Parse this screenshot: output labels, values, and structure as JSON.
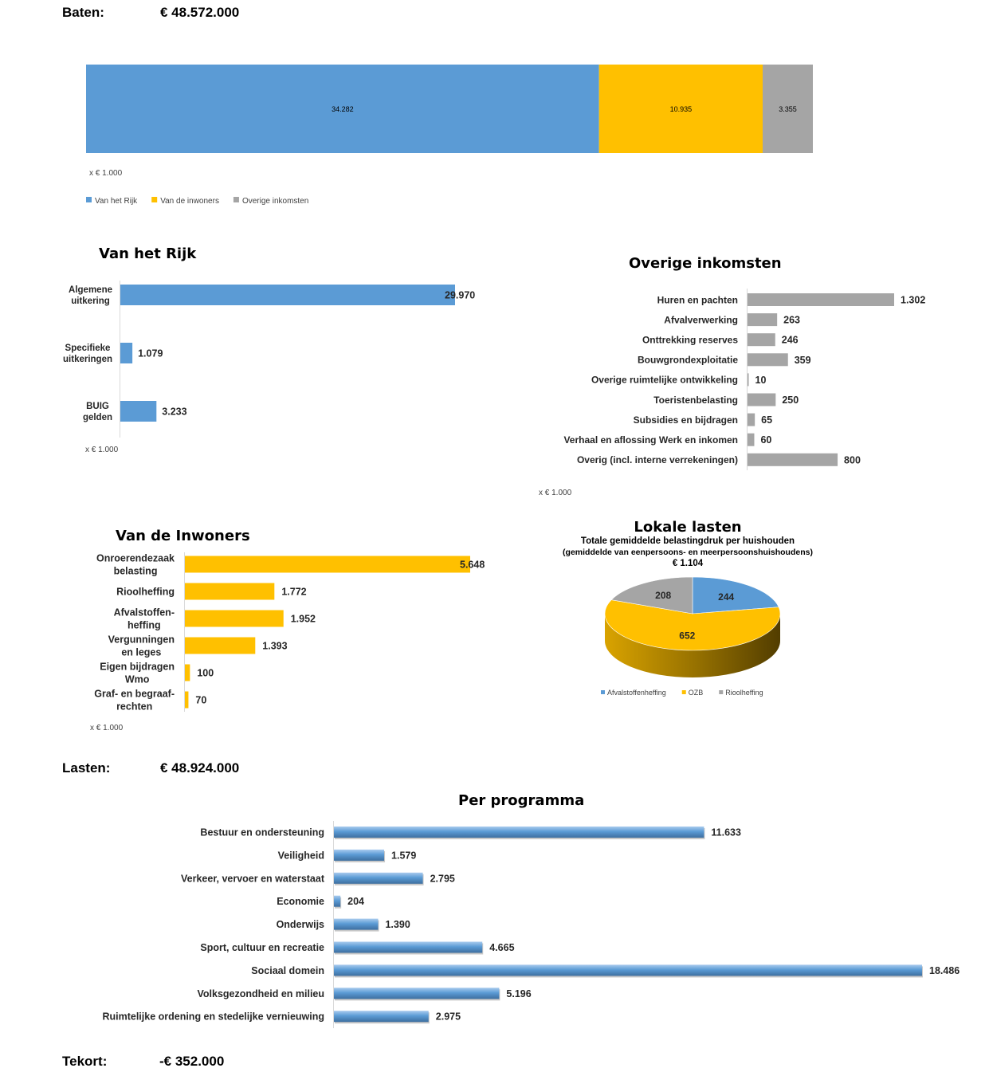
{
  "summary": {
    "baten": {
      "label": "Baten:",
      "value": "€ 48.572.000"
    },
    "lasten": {
      "label": "Lasten:",
      "value": "€ 48.924.000"
    },
    "tekort": {
      "label": "Tekort:",
      "value": "-€ 352.000"
    }
  },
  "chart_data": [
    {
      "type": "bar",
      "orientation": "horizontal",
      "stacked": true,
      "series": [
        {
          "name": "Van het Rijk",
          "values": [
            34282
          ],
          "color": "#5b9bd5"
        },
        {
          "name": "Van de inwoners",
          "values": [
            10935
          ],
          "color": "#ffc000"
        },
        {
          "name": "Overige inkomsten",
          "values": [
            3355
          ],
          "color": "#a5a5a5"
        }
      ],
      "unit_note": "x € 1.000",
      "legend": "bottom-left",
      "grid": false
    },
    {
      "type": "bar",
      "orientation": "horizontal",
      "title": "Van het Rijk",
      "categories": [
        "Algemene\nuitkering",
        "Specifieke\nuitkeringen",
        "BUIG\ngelden"
      ],
      "values": [
        29970,
        1079,
        3233
      ],
      "color": "#5b9bd5",
      "unit_note": "x € 1.000",
      "grid": false
    },
    {
      "type": "bar",
      "orientation": "horizontal",
      "title": "Overige inkomsten",
      "categories": [
        "Huren en pachten",
        "Afvalverwerking",
        "Onttrekking reserves",
        "Bouwgrondexploitatie",
        "Overige ruimtelijke ontwikkeling",
        "Toeristenbelasting",
        "Subsidies en bijdragen",
        "Verhaal en aflossing Werk en inkomen",
        "Overig (incl. interne verrekeningen)"
      ],
      "values": [
        1302,
        263,
        246,
        359,
        10,
        250,
        65,
        60,
        800
      ],
      "color": "#a5a5a5",
      "unit_note": "x € 1.000",
      "grid": false
    },
    {
      "type": "bar",
      "orientation": "horizontal",
      "title": "Van de Inwoners",
      "categories": [
        "Onroerendezaak\nbelasting",
        "Rioolheffing",
        "Afvalstoffen-\nheffing",
        "Vergunningen\nen leges",
        "Eigen bijdragen\nWmo",
        "Graf- en begraaf-\nrechten"
      ],
      "values": [
        5648,
        1772,
        1952,
        1393,
        100,
        70
      ],
      "color": "#ffc000",
      "unit_note": "x € 1.000",
      "grid": false
    },
    {
      "type": "pie",
      "three_d": true,
      "title": "Lokale lasten",
      "subtitle": "Totale gemiddelde belastingdruk per huishouden",
      "subtitle_2": "(gemiddelde van eenpersoons- en meerpersoonshuishoudens)",
      "total_label": "€ 1.104",
      "slices": [
        {
          "name": "Afvalstoffenheffing",
          "value": 244,
          "color": "#5b9bd5"
        },
        {
          "name": "OZB",
          "value": 652,
          "color": "#ffc000"
        },
        {
          "name": "Rioolheffing",
          "value": 208,
          "color": "#a5a5a5"
        }
      ],
      "legend": "bottom"
    },
    {
      "type": "bar",
      "orientation": "horizontal",
      "title": "Per programma",
      "categories": [
        "Bestuur en ondersteuning",
        "Veiligheid",
        "Verkeer, vervoer en waterstaat",
        "Economie",
        "Onderwijs",
        "Sport, cultuur en recreatie",
        "Sociaal domein",
        "Volksgezondheid en milieu",
        "Ruimtelijke ordening en stedelijke vernieuwing"
      ],
      "values": [
        11633,
        1579,
        2795,
        204,
        1390,
        4665,
        18486,
        5196,
        2975
      ],
      "color": "#5b9bd5",
      "grid": false
    }
  ]
}
